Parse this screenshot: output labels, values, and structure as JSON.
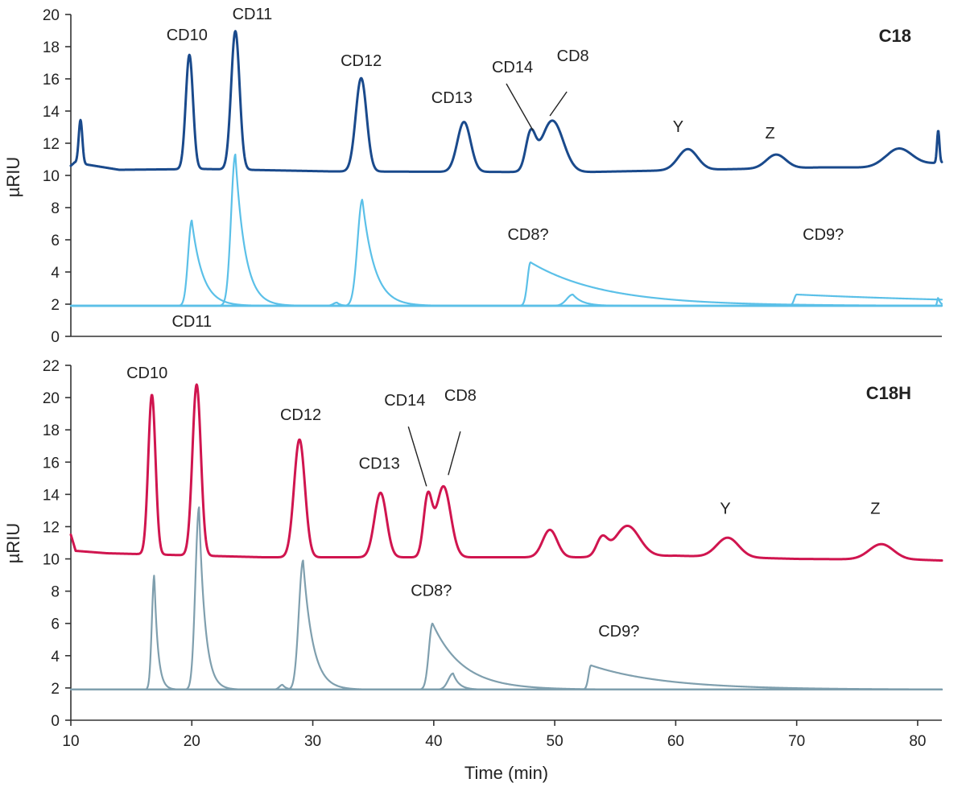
{
  "colors": {
    "c18_main": "#1a4a8c",
    "c18_ref": "#5bc0e8",
    "c18h_main": "#d0154f",
    "c18h_ref": "#7f9fae"
  },
  "chart_data": [
    {
      "type": "line",
      "title": "C18",
      "ylabel": "µRIU",
      "ylim": [
        0,
        20
      ],
      "xlim": [
        10,
        82
      ],
      "yticks": [
        0,
        2,
        4,
        6,
        8,
        10,
        12,
        14,
        16,
        18,
        20
      ],
      "baselines": {
        "main": 10.1,
        "ref": 1.9
      },
      "series": [
        {
          "role": "main",
          "start": 10.6,
          "lead_bumps": [
            [
              10.3,
              10.8
            ],
            [
              14,
              10.35
            ],
            [
              21,
              10.4
            ],
            [
              31.5,
              10.25
            ],
            [
              52,
              10.2
            ],
            [
              72,
              10.5
            ],
            [
              74.5,
              10.5
            ],
            [
              77.5,
              10.45
            ]
          ],
          "end": 10.8,
          "peaks": [
            {
              "x": 10.8,
              "y": 12.8,
              "w": 0.15
            },
            {
              "x": 19.8,
              "y": 17.2,
              "w": 0.3
            },
            {
              "x": 23.6,
              "y": 18.7,
              "w": 0.35
            },
            {
              "x": 34.0,
              "y": 15.9,
              "w": 0.45
            },
            {
              "x": 42.5,
              "y": 13.2,
              "w": 0.55
            },
            {
              "x": 48.0,
              "y": 12.3,
              "w": 0.4
            },
            {
              "x": 49.8,
              "y": 13.3,
              "w": 0.9
            },
            {
              "x": 61.0,
              "y": 11.4,
              "w": 0.8
            },
            {
              "x": 68.3,
              "y": 10.95,
              "w": 0.8
            },
            {
              "x": 78.4,
              "y": 11.25,
              "w": 1.1
            },
            {
              "x": 81.7,
              "y": 12.1,
              "w": 0.1
            }
          ]
        },
        {
          "role": "ref",
          "peaks": [
            {
              "x": 20.0,
              "y": 7.2,
              "w": 0.3,
              "tail": 0.9
            },
            {
              "x": 23.6,
              "y": 11.3,
              "w": 0.35,
              "tail": 0.8
            },
            {
              "x": 32.0,
              "y": 2.1,
              "w": 0.3,
              "tail": 0.3
            },
            {
              "x": 34.1,
              "y": 8.5,
              "w": 0.4,
              "tail": 1.0
            },
            {
              "x": 48.0,
              "y": 4.6,
              "w": 0.25,
              "tail": 6.0
            },
            {
              "x": 51.5,
              "y": 2.6,
              "w": 0.5,
              "tail": 0.8
            },
            {
              "x": 70.0,
              "y": 2.6,
              "w": 0.2,
              "tail": 20.0
            },
            {
              "x": 81.7,
              "y": 2.4,
              "w": 0.08,
              "tail": 0.2
            }
          ]
        }
      ],
      "annotations": [
        {
          "label": "CD10",
          "x": 19.6,
          "y": 18.4
        },
        {
          "label": "CD11",
          "x": 25.0,
          "y": 19.7
        },
        {
          "label": "CD12",
          "x": 34.0,
          "y": 16.8
        },
        {
          "label": "CD13",
          "x": 41.5,
          "y": 14.5
        },
        {
          "label": "CD14",
          "x": 46.5,
          "y": 16.4
        },
        {
          "label": "CD8",
          "x": 51.5,
          "y": 17.1
        },
        {
          "label": "Y",
          "x": 60.2,
          "y": 12.7
        },
        {
          "label": "Z",
          "x": 67.8,
          "y": 12.3
        },
        {
          "label": "CD8?",
          "x": 47.8,
          "y": 6.0
        },
        {
          "label": "CD9?",
          "x": 72.2,
          "y": 6.0
        }
      ],
      "leaders": [
        {
          "from": [
            46.0,
            15.7
          ],
          "to": [
            48.2,
            12.8
          ]
        },
        {
          "from": [
            51.0,
            15.2
          ],
          "to": [
            49.6,
            13.7
          ]
        }
      ]
    },
    {
      "type": "line",
      "title": "C18H",
      "ylabel": "µRIU",
      "xlabel": "Time (min)",
      "ylim": [
        0,
        22
      ],
      "xlim": [
        10,
        82
      ],
      "yticks": [
        0,
        2,
        4,
        6,
        8,
        10,
        12,
        14,
        16,
        18,
        20,
        22
      ],
      "xticks": [
        10,
        20,
        30,
        40,
        50,
        60,
        70,
        80
      ],
      "baselines": {
        "main": 10.0,
        "ref": 1.9
      },
      "series": [
        {
          "role": "main",
          "start": 11.5,
          "lead_bumps": [
            [
              10.4,
              10.5
            ],
            [
              13,
              10.35
            ],
            [
              26,
              10.1
            ],
            [
              52,
              10.1
            ],
            [
              60,
              10.2
            ],
            [
              70,
              10.0
            ],
            [
              80,
              9.95
            ]
          ],
          "end": 9.9,
          "peaks": [
            {
              "x": 16.7,
              "y": 19.9,
              "w": 0.3
            },
            {
              "x": 20.4,
              "y": 20.6,
              "w": 0.35
            },
            {
              "x": 28.9,
              "y": 17.3,
              "w": 0.45
            },
            {
              "x": 35.6,
              "y": 14.0,
              "w": 0.5
            },
            {
              "x": 39.5,
              "y": 13.6,
              "w": 0.35
            },
            {
              "x": 40.8,
              "y": 14.4,
              "w": 0.6
            },
            {
              "x": 49.6,
              "y": 11.7,
              "w": 0.6
            },
            {
              "x": 53.9,
              "y": 11.1,
              "w": 0.45
            },
            {
              "x": 56.0,
              "y": 11.9,
              "w": 1.0
            },
            {
              "x": 64.3,
              "y": 11.2,
              "w": 0.9
            },
            {
              "x": 77.0,
              "y": 10.95,
              "w": 1.0
            }
          ]
        },
        {
          "role": "ref",
          "peaks": [
            {
              "x": 16.9,
              "y": 9.0,
              "w": 0.2,
              "tail": 0.3
            },
            {
              "x": 20.6,
              "y": 13.2,
              "w": 0.3,
              "tail": 0.5
            },
            {
              "x": 27.5,
              "y": 2.2,
              "w": 0.25,
              "tail": 0.3
            },
            {
              "x": 29.2,
              "y": 9.9,
              "w": 0.35,
              "tail": 0.8
            },
            {
              "x": 39.9,
              "y": 6.0,
              "w": 0.3,
              "tail": 2.5
            },
            {
              "x": 41.6,
              "y": 2.9,
              "w": 0.4,
              "tail": 0.5
            },
            {
              "x": 53.0,
              "y": 3.4,
              "w": 0.2,
              "tail": 6.0
            }
          ]
        }
      ],
      "annotations": [
        {
          "label": "CD10",
          "x": 16.3,
          "y": 21.2
        },
        {
          "label": "CD11",
          "x": 20.0,
          "y": 24.4
        },
        {
          "label": "CD12",
          "x": 29.0,
          "y": 18.6
        },
        {
          "label": "CD13",
          "x": 35.5,
          "y": 15.6
        },
        {
          "label": "CD14",
          "x": 37.6,
          "y": 19.5
        },
        {
          "label": "CD8",
          "x": 42.2,
          "y": 19.8
        },
        {
          "label": "Y",
          "x": 64.1,
          "y": 12.8
        },
        {
          "label": "Z",
          "x": 76.5,
          "y": 12.8
        },
        {
          "label": "CD8?",
          "x": 39.8,
          "y": 7.7
        },
        {
          "label": "CD9?",
          "x": 55.3,
          "y": 5.2
        }
      ],
      "leaders": [
        {
          "from": [
            37.9,
            18.2
          ],
          "to": [
            39.4,
            14.5
          ]
        },
        {
          "from": [
            42.2,
            17.9
          ],
          "to": [
            41.2,
            15.2
          ]
        }
      ]
    }
  ]
}
